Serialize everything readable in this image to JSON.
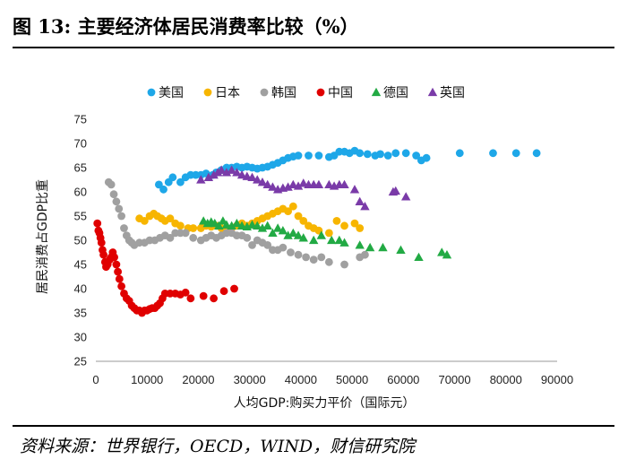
{
  "figure": {
    "title": "图 13:  主要经济体居民消费率比较（%）",
    "source": "资料来源：世界银行，OECD，WIND，财信研究院"
  },
  "chart_data": {
    "type": "scatter",
    "title": "主要经济体居民消费率比较（%）",
    "xlabel": "人均GDP:购买力平价（国际元）",
    "ylabel": "居民消费占GDP比重",
    "xlim": [
      0,
      90000
    ],
    "ylim": [
      25,
      75
    ],
    "xticks": [
      0,
      10000,
      20000,
      30000,
      40000,
      50000,
      60000,
      70000,
      80000,
      90000
    ],
    "yticks": [
      25,
      30,
      35,
      40,
      45,
      50,
      55,
      60,
      65,
      70,
      75
    ],
    "xtick_labels": [
      "0",
      "10000",
      "20000",
      "30000",
      "40000",
      "50000",
      "60000",
      "70000",
      "80000",
      "90000"
    ],
    "ytick_labels": [
      "25",
      "30",
      "35",
      "40",
      "45",
      "50",
      "55",
      "60",
      "65",
      "70",
      "75"
    ],
    "legend_position": "top",
    "series": [
      {
        "name": "美国",
        "color": "#1ea7e8",
        "marker": "circle",
        "points": [
          [
            12300,
            61.5
          ],
          [
            13200,
            60.5
          ],
          [
            14200,
            62
          ],
          [
            15000,
            63
          ],
          [
            16500,
            62
          ],
          [
            17500,
            63
          ],
          [
            18500,
            63.5
          ],
          [
            19500,
            63.5
          ],
          [
            20500,
            63.5
          ],
          [
            21500,
            63.8
          ],
          [
            22800,
            63.5
          ],
          [
            23500,
            64
          ],
          [
            24500,
            64.5
          ],
          [
            25500,
            65
          ],
          [
            26500,
            65
          ],
          [
            27500,
            65.2
          ],
          [
            28500,
            65
          ],
          [
            29500,
            65.2
          ],
          [
            30500,
            65
          ],
          [
            31500,
            64.8
          ],
          [
            32500,
            65
          ],
          [
            33500,
            65.2
          ],
          [
            34500,
            65.6
          ],
          [
            35500,
            66
          ],
          [
            36500,
            66.5
          ],
          [
            37500,
            67
          ],
          [
            38500,
            67.3
          ],
          [
            39500,
            67.5
          ],
          [
            41500,
            67.5
          ],
          [
            43500,
            67.5
          ],
          [
            45500,
            67.2
          ],
          [
            46500,
            67.5
          ],
          [
            47500,
            68.3
          ],
          [
            48500,
            68.3
          ],
          [
            49500,
            68
          ],
          [
            50500,
            68.5
          ],
          [
            51500,
            68
          ],
          [
            53000,
            67.8
          ],
          [
            54500,
            67.5
          ],
          [
            55500,
            67.8
          ],
          [
            57000,
            67.5
          ],
          [
            58500,
            68
          ],
          [
            60500,
            68
          ],
          [
            62500,
            67.5
          ],
          [
            63500,
            66.5
          ],
          [
            64500,
            67
          ],
          [
            71000,
            68
          ],
          [
            77500,
            68
          ],
          [
            82000,
            68
          ],
          [
            86000,
            68
          ]
        ]
      },
      {
        "name": "日本",
        "color": "#f7b500",
        "marker": "circle",
        "points": [
          [
            8500,
            54.5
          ],
          [
            9500,
            54
          ],
          [
            10500,
            55
          ],
          [
            11300,
            55.5
          ],
          [
            12000,
            55
          ],
          [
            12800,
            54.5
          ],
          [
            13500,
            54
          ],
          [
            14500,
            54.5
          ],
          [
            15500,
            53.5
          ],
          [
            16500,
            53
          ],
          [
            18000,
            52.5
          ],
          [
            19000,
            52.5
          ],
          [
            20500,
            52.5
          ],
          [
            21500,
            53
          ],
          [
            22500,
            52.8
          ],
          [
            23500,
            53
          ],
          [
            24500,
            52.5
          ],
          [
            25500,
            52
          ],
          [
            26500,
            52.5
          ],
          [
            27500,
            53
          ],
          [
            28500,
            53.5
          ],
          [
            29500,
            53
          ],
          [
            30500,
            53.5
          ],
          [
            31500,
            54
          ],
          [
            32500,
            54.5
          ],
          [
            33500,
            55
          ],
          [
            34500,
            55.5
          ],
          [
            35500,
            56
          ],
          [
            36500,
            56.5
          ],
          [
            37500,
            56
          ],
          [
            38500,
            57
          ],
          [
            39500,
            55
          ],
          [
            40500,
            54
          ],
          [
            41500,
            53
          ],
          [
            42500,
            52.5
          ],
          [
            43500,
            52
          ],
          [
            45500,
            51.5
          ],
          [
            47000,
            54
          ],
          [
            48500,
            53
          ],
          [
            50500,
            53.5
          ],
          [
            51500,
            52.5
          ]
        ]
      },
      {
        "name": "韩国",
        "color": "#a0a0a0",
        "marker": "circle",
        "points": [
          [
            2500,
            62
          ],
          [
            3000,
            61.5
          ],
          [
            3500,
            59.5
          ],
          [
            4000,
            58
          ],
          [
            4500,
            56.5
          ],
          [
            5000,
            55
          ],
          [
            5500,
            52.5
          ],
          [
            6000,
            51
          ],
          [
            6500,
            50
          ],
          [
            7000,
            49.5
          ],
          [
            7500,
            49
          ],
          [
            8500,
            49.5
          ],
          [
            9500,
            49.5
          ],
          [
            10500,
            50
          ],
          [
            11500,
            50
          ],
          [
            12500,
            50.5
          ],
          [
            13500,
            51
          ],
          [
            14500,
            50.5
          ],
          [
            15500,
            51.5
          ],
          [
            16500,
            51.5
          ],
          [
            17500,
            51.5
          ],
          [
            19000,
            50.5
          ],
          [
            20500,
            50
          ],
          [
            21500,
            50.5
          ],
          [
            22500,
            51
          ],
          [
            23500,
            50.5
          ],
          [
            24500,
            51
          ],
          [
            25500,
            51.5
          ],
          [
            26500,
            51.5
          ],
          [
            27500,
            51
          ],
          [
            28500,
            51
          ],
          [
            29500,
            50.5
          ],
          [
            30500,
            49
          ],
          [
            31500,
            50
          ],
          [
            32500,
            49.5
          ],
          [
            33500,
            49
          ],
          [
            34500,
            48
          ],
          [
            35500,
            48
          ],
          [
            36500,
            48.5
          ],
          [
            38000,
            47.5
          ],
          [
            39500,
            47
          ],
          [
            41000,
            46.5
          ],
          [
            42500,
            46
          ],
          [
            44000,
            46.5
          ],
          [
            45500,
            45.5
          ],
          [
            48500,
            45
          ],
          [
            51500,
            46.5
          ],
          [
            52500,
            47
          ]
        ]
      },
      {
        "name": "中国",
        "color": "#e00000",
        "marker": "circle",
        "points": [
          [
            300,
            53.5
          ],
          [
            500,
            52
          ],
          [
            700,
            51.5
          ],
          [
            900,
            50.5
          ],
          [
            1100,
            49.5
          ],
          [
            1300,
            48
          ],
          [
            1500,
            47
          ],
          [
            1800,
            45.5
          ],
          [
            2000,
            44.5
          ],
          [
            2300,
            45
          ],
          [
            2700,
            46
          ],
          [
            3000,
            46.5
          ],
          [
            3300,
            47.5
          ],
          [
            3600,
            46.5
          ],
          [
            4000,
            45
          ],
          [
            4300,
            43.5
          ],
          [
            4600,
            42
          ],
          [
            5000,
            40.5
          ],
          [
            5500,
            39
          ],
          [
            6000,
            38
          ],
          [
            6500,
            37.5
          ],
          [
            7000,
            36.5
          ],
          [
            7500,
            36
          ],
          [
            8000,
            35.5
          ],
          [
            8500,
            35.5
          ],
          [
            9000,
            35
          ],
          [
            9500,
            35.5
          ],
          [
            10000,
            35.5
          ],
          [
            10500,
            35.8
          ],
          [
            11000,
            36
          ],
          [
            11500,
            36
          ],
          [
            12000,
            36.5
          ],
          [
            12500,
            37
          ],
          [
            13000,
            38
          ],
          [
            13500,
            39
          ],
          [
            14500,
            39
          ],
          [
            15500,
            39
          ],
          [
            16500,
            38.8
          ],
          [
            17500,
            39.2
          ],
          [
            18500,
            38
          ],
          [
            21000,
            38.5
          ],
          [
            23000,
            38
          ],
          [
            25000,
            39.5
          ],
          [
            27000,
            40
          ]
        ]
      },
      {
        "name": "德国",
        "color": "#22aa44",
        "marker": "triangle",
        "points": [
          [
            21000,
            54
          ],
          [
            21800,
            53.5
          ],
          [
            22500,
            53.8
          ],
          [
            23200,
            53.5
          ],
          [
            24000,
            53
          ],
          [
            24800,
            54
          ],
          [
            25500,
            53.2
          ],
          [
            26500,
            53
          ],
          [
            27500,
            53.5
          ],
          [
            28500,
            53
          ],
          [
            29500,
            52.8
          ],
          [
            30500,
            53.2
          ],
          [
            31500,
            53
          ],
          [
            32500,
            52.5
          ],
          [
            33500,
            53
          ],
          [
            34500,
            51.5
          ],
          [
            35500,
            52.5
          ],
          [
            36500,
            52
          ],
          [
            37500,
            51
          ],
          [
            38500,
            51.5
          ],
          [
            39500,
            51
          ],
          [
            40500,
            50.5
          ],
          [
            42500,
            50
          ],
          [
            44000,
            51
          ],
          [
            46000,
            50
          ],
          [
            47500,
            50
          ],
          [
            48500,
            49.5
          ],
          [
            51500,
            49
          ],
          [
            53500,
            48.5
          ],
          [
            56000,
            48.5
          ],
          [
            59500,
            48
          ],
          [
            63000,
            46.5
          ],
          [
            67500,
            47.5
          ],
          [
            68500,
            47
          ]
        ]
      },
      {
        "name": "英国",
        "color": "#7a3ba8",
        "marker": "triangle",
        "points": [
          [
            20500,
            62.5
          ],
          [
            22000,
            63
          ],
          [
            23000,
            63.5
          ],
          [
            23800,
            64
          ],
          [
            24500,
            64.5
          ],
          [
            25500,
            64
          ],
          [
            26500,
            64.5
          ],
          [
            27500,
            64
          ],
          [
            28500,
            63.5
          ],
          [
            29500,
            63.2
          ],
          [
            30500,
            63
          ],
          [
            31500,
            62.5
          ],
          [
            32500,
            62
          ],
          [
            33500,
            61.5
          ],
          [
            34500,
            61
          ],
          [
            35500,
            60.5
          ],
          [
            36500,
            60.8
          ],
          [
            37500,
            61
          ],
          [
            38500,
            61.5
          ],
          [
            39500,
            61.2
          ],
          [
            40500,
            61.8
          ],
          [
            41500,
            61.5
          ],
          [
            42500,
            61.5
          ],
          [
            43500,
            61.5
          ],
          [
            45500,
            61.5
          ],
          [
            46500,
            61.2
          ],
          [
            47500,
            61.5
          ],
          [
            48500,
            61.5
          ],
          [
            50500,
            60.5
          ],
          [
            51500,
            58
          ],
          [
            52500,
            57
          ],
          [
            58000,
            60
          ],
          [
            58500,
            60.2
          ],
          [
            60500,
            59
          ]
        ]
      }
    ]
  }
}
